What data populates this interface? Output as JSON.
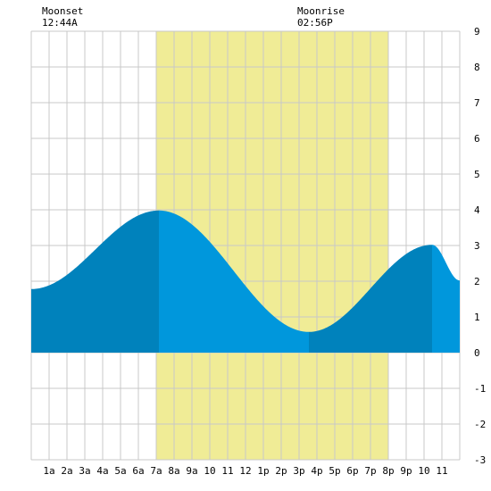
{
  "colors": {
    "daylight": "#f0ec96",
    "tide_a": "#0082bc",
    "tide_b": "#0097dc",
    "grid": "#c8c8c8",
    "background": "#ffffff"
  },
  "moon": {
    "left_label": "Moonset",
    "left_time": "12:44A",
    "right_label": "Moonrise",
    "right_time": "02:56P"
  },
  "chart_data": {
    "type": "area",
    "title": "",
    "xlabel": "",
    "ylabel": "",
    "xlim": [
      0,
      24
    ],
    "ylim": [
      -3,
      9
    ],
    "yticks": [
      -3,
      -2,
      -1,
      0,
      1,
      2,
      3,
      4,
      5,
      6,
      7,
      8,
      9
    ],
    "xtick_positions": [
      1,
      2,
      3,
      4,
      5,
      6,
      7,
      8,
      9,
      10,
      11,
      12,
      13,
      14,
      15,
      16,
      17,
      18,
      19,
      20,
      21,
      22,
      23
    ],
    "xtick_labels": [
      "1a",
      "2a",
      "3a",
      "4a",
      "5a",
      "6a",
      "7a",
      "8a",
      "9a",
      "10",
      "11",
      "12",
      "1p",
      "2p",
      "3p",
      "4p",
      "5p",
      "6p",
      "7p",
      "8p",
      "9p",
      "10",
      "11"
    ],
    "daylight": [
      7.0,
      20.0
    ],
    "moonset": 0.73,
    "moonrise": 14.93,
    "extremes": [
      {
        "x": 7.15,
        "y": 3.98,
        "kind": "high"
      },
      {
        "x": 15.55,
        "y": 0.58,
        "kind": "low"
      },
      {
        "x": 22.45,
        "y": 3.02,
        "kind": "high"
      }
    ],
    "start_level": 1.78,
    "end_level": 2.02,
    "segment_breaks": [
      7.15,
      15.55,
      22.45
    ]
  }
}
